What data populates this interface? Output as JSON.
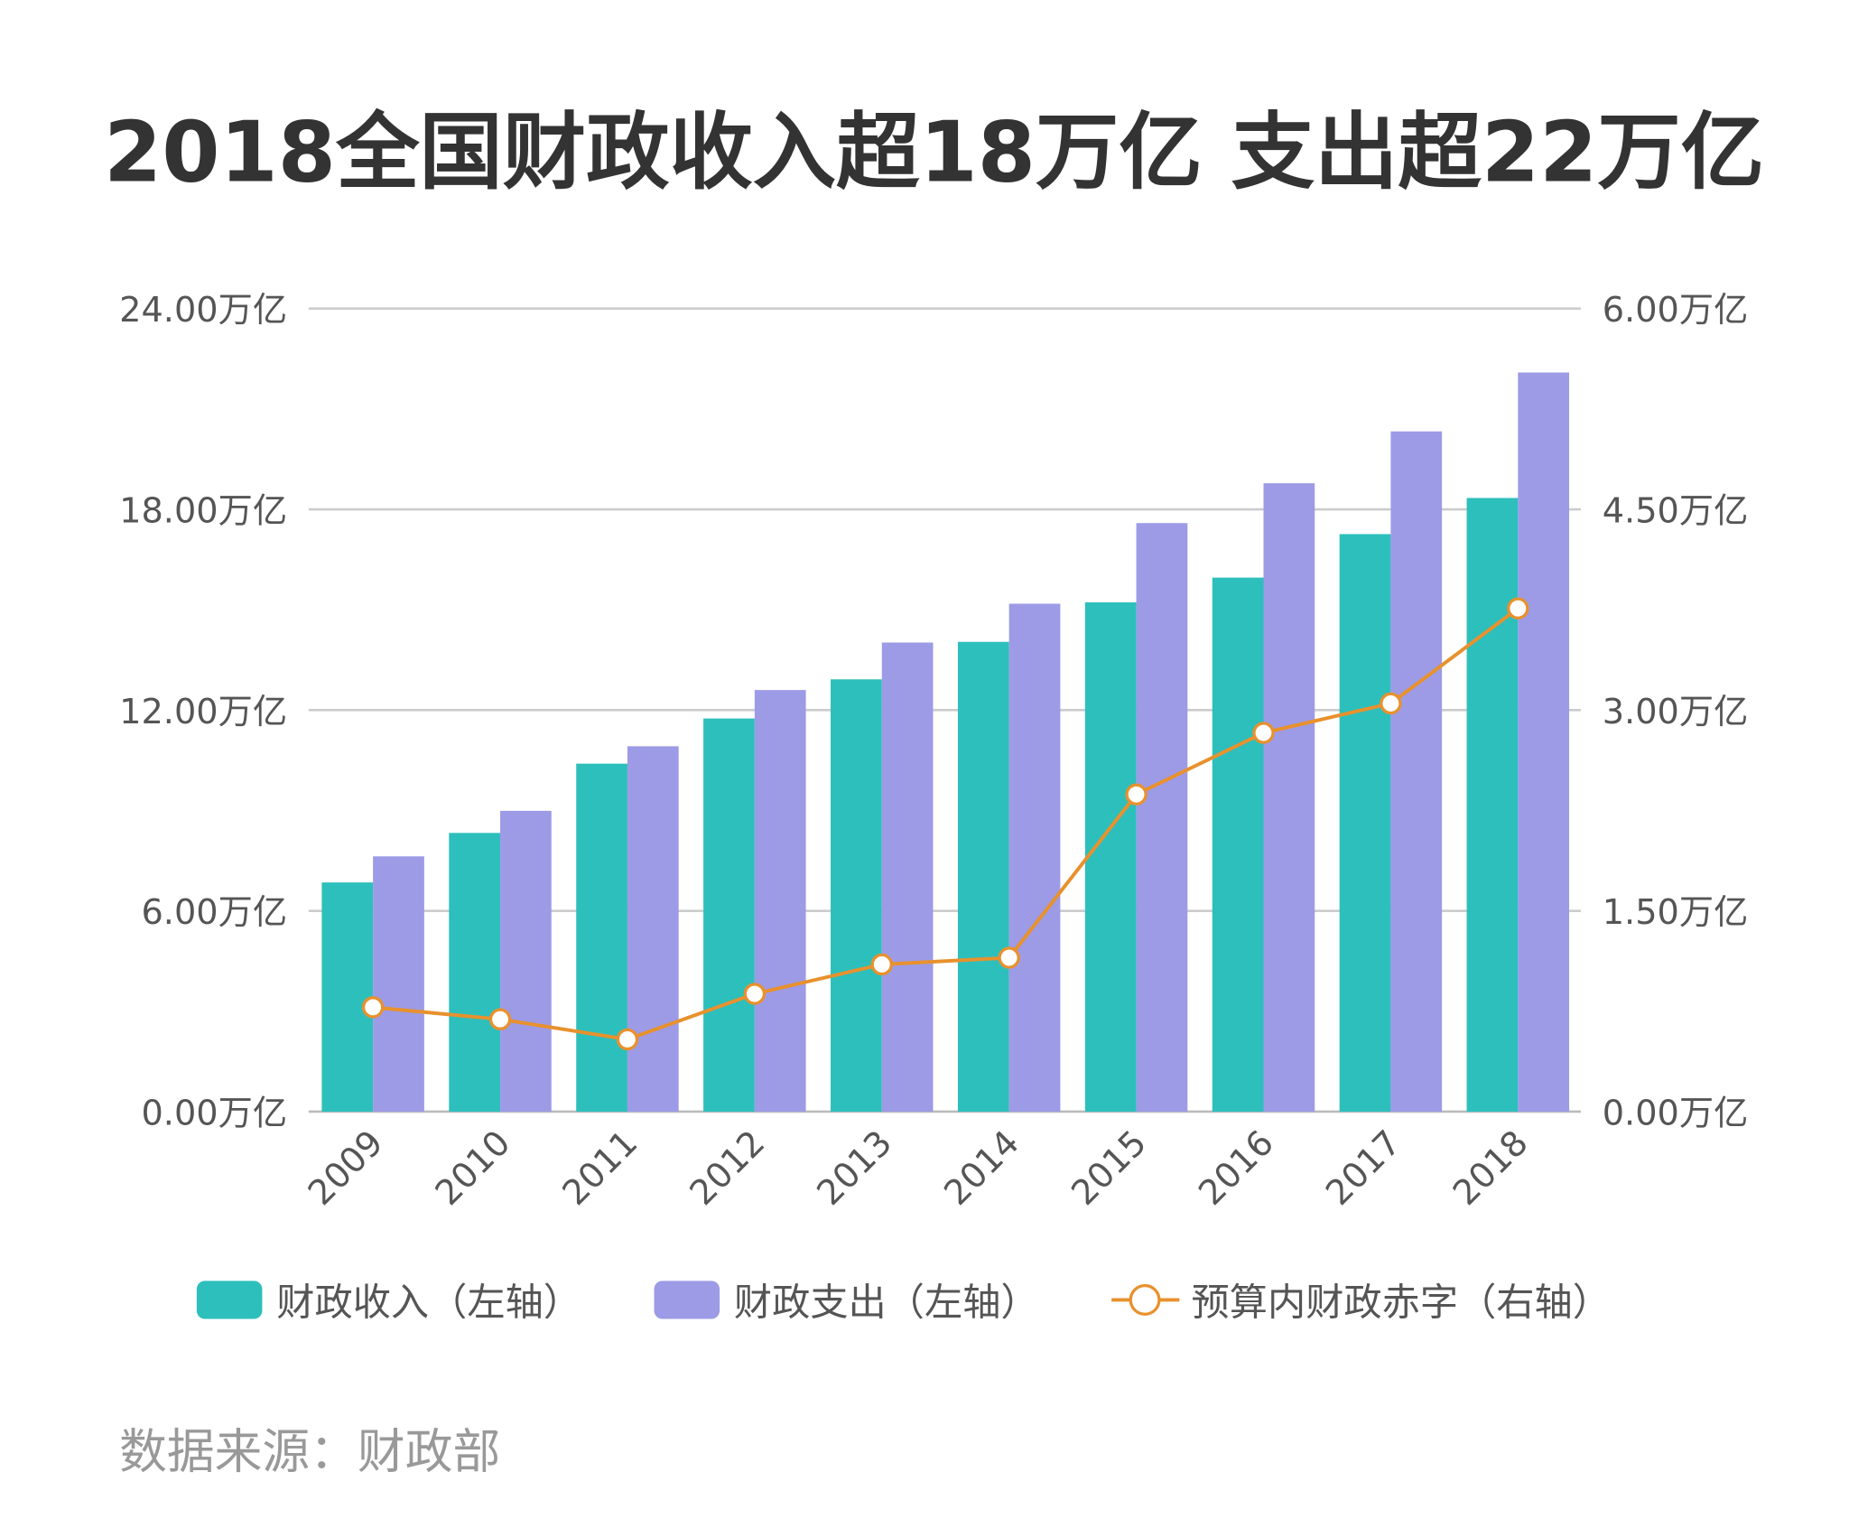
{
  "chart_data": {
    "type": "bar",
    "title": "2018全国财政收入超18万亿 支出超22万亿",
    "source": "数据来源：财政部",
    "categories": [
      "2009",
      "2010",
      "2011",
      "2012",
      "2013",
      "2014",
      "2015",
      "2016",
      "2017",
      "2018"
    ],
    "left_axis": {
      "range": [
        0,
        24
      ],
      "ticks": [
        "0.00万亿",
        "6.00万亿",
        "12.00万亿",
        "18.00万亿",
        "24.00万亿"
      ],
      "tick_values": [
        0,
        6,
        12,
        18,
        24
      ]
    },
    "right_axis": {
      "range": [
        0,
        6
      ],
      "ticks": [
        "0.00万亿",
        "1.50万亿",
        "3.00万亿",
        "4.50万亿",
        "6.00万亿"
      ],
      "tick_values": [
        0,
        1.5,
        3,
        4.5,
        6
      ]
    },
    "grid": true,
    "legend_position": "bottom",
    "series": [
      {
        "name": "财政收入（左轴）",
        "type": "bar",
        "axis": "left",
        "color": "#2dbfbc",
        "values": [
          6.85,
          8.33,
          10.4,
          11.75,
          12.92,
          14.04,
          15.22,
          15.96,
          17.26,
          18.34
        ]
      },
      {
        "name": "财政支出（左轴）",
        "type": "bar",
        "axis": "left",
        "color": "#9d9be6",
        "values": [
          7.63,
          8.99,
          10.92,
          12.6,
          14.02,
          15.18,
          17.59,
          18.78,
          20.33,
          22.09
        ]
      },
      {
        "name": "预算内财政赤字（右轴）",
        "type": "line",
        "axis": "right",
        "color": "#e8912d",
        "values": [
          0.78,
          0.69,
          0.54,
          0.88,
          1.1,
          1.15,
          2.37,
          2.83,
          3.05,
          3.76
        ]
      }
    ]
  }
}
